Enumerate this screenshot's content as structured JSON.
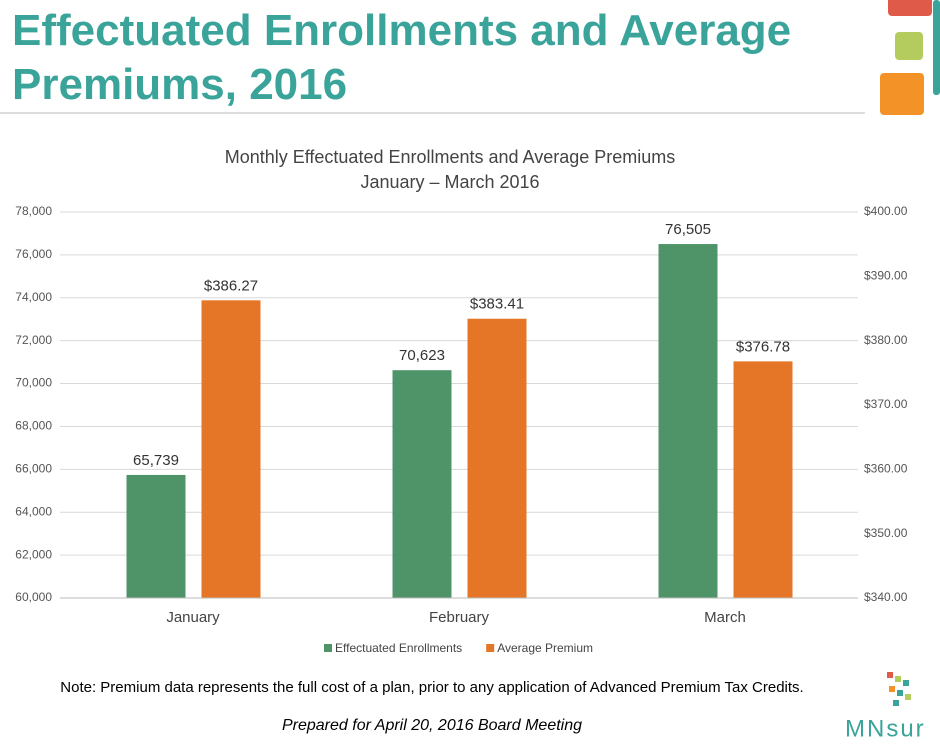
{
  "header": {
    "title": "Effectuated Enrollments and Average Premiums, 2016"
  },
  "chart_data": {
    "type": "bar",
    "title": "Monthly Effectuated Enrollments and Average Premiums",
    "subtitle": "January – March 2016",
    "categories": [
      "January",
      "February",
      "March"
    ],
    "series": [
      {
        "name": "Effectuated Enrollments",
        "color": "#4e9468",
        "values": [
          65739,
          70623,
          76505
        ],
        "value_labels": [
          "65,739",
          "70,623",
          "76,505"
        ]
      },
      {
        "name": "Average Premium",
        "color": "#e67627",
        "axis": "y2",
        "values": [
          386.27,
          383.41,
          376.78
        ],
        "value_labels": [
          "$386.27",
          "$383.41",
          "$376.78"
        ]
      }
    ],
    "ylim": [
      60000,
      78000
    ],
    "yticks": [
      {
        "value": 60000,
        "label": "60,000"
      },
      {
        "value": 62000,
        "label": "62,000"
      },
      {
        "value": 64000,
        "label": "64,000"
      },
      {
        "value": 66000,
        "label": "66,000"
      },
      {
        "value": 68000,
        "label": "68,000"
      },
      {
        "value": 70000,
        "label": "70,000"
      },
      {
        "value": 72000,
        "label": "72,000"
      },
      {
        "value": 74000,
        "label": "74,000"
      },
      {
        "value": 76000,
        "label": "76,000"
      },
      {
        "value": 78000,
        "label": "78,000"
      }
    ],
    "y2lim": [
      340,
      400
    ],
    "y2ticks": [
      {
        "value": 340,
        "label": "$340.00"
      },
      {
        "value": 350,
        "label": "$350.00"
      },
      {
        "value": 360,
        "label": "$360.00"
      },
      {
        "value": 370,
        "label": "$370.00"
      },
      {
        "value": 380,
        "label": "$380.00"
      },
      {
        "value": 390,
        "label": "$390.00"
      },
      {
        "value": 400,
        "label": "$400.00"
      }
    ],
    "grid": true,
    "legend": "bottom"
  },
  "note": "Note: Premium data represents the full cost of a plan, prior to any application of Advanced Premium Tax Credits.",
  "footer": "Prepared for April 20, 2016 Board Meeting",
  "logo": "MNsur"
}
